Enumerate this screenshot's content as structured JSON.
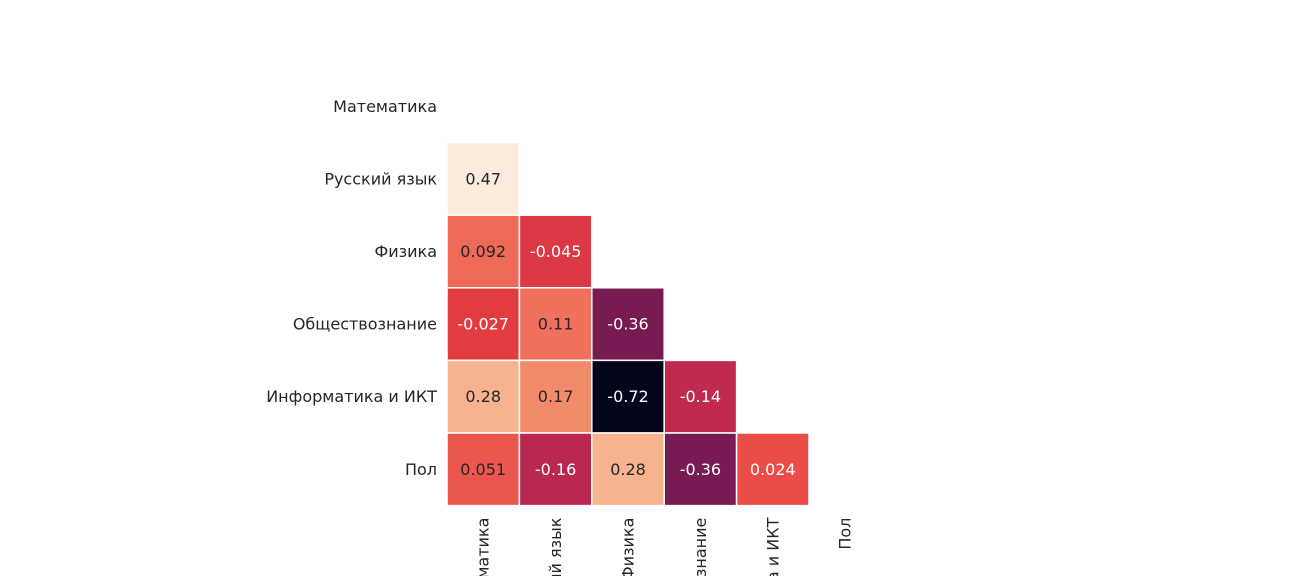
{
  "chart_data": {
    "type": "heatmap",
    "variant": "lower-triangle correlation matrix",
    "title": "",
    "row_labels": [
      "Математика",
      "Русский язык",
      "Физика",
      "Обществознание",
      "Информатика и ИКТ",
      "Пол"
    ],
    "col_labels": [
      "Математика",
      "Русский язык",
      "Физика",
      "Обществознание",
      "Информатика и ИКТ",
      "Пол"
    ],
    "col_labels_visible": [
      "матика",
      "ий язык",
      "Физика",
      "знание",
      "а и ИКТ",
      "Пол"
    ],
    "cells": [
      {
        "row": 1,
        "col": 0,
        "value": 0.47,
        "label": "0.47"
      },
      {
        "row": 2,
        "col": 0,
        "value": 0.092,
        "label": "0.092"
      },
      {
        "row": 2,
        "col": 1,
        "value": -0.045,
        "label": "-0.045"
      },
      {
        "row": 3,
        "col": 0,
        "value": -0.027,
        "label": "-0.027"
      },
      {
        "row": 3,
        "col": 1,
        "value": 0.11,
        "label": "0.11"
      },
      {
        "row": 3,
        "col": 2,
        "value": -0.36,
        "label": "-0.36"
      },
      {
        "row": 4,
        "col": 0,
        "value": 0.28,
        "label": "0.28"
      },
      {
        "row": 4,
        "col": 1,
        "value": 0.17,
        "label": "0.17"
      },
      {
        "row": 4,
        "col": 2,
        "value": -0.72,
        "label": "-0.72"
      },
      {
        "row": 4,
        "col": 3,
        "value": -0.14,
        "label": "-0.14"
      },
      {
        "row": 5,
        "col": 0,
        "value": 0.051,
        "label": "0.051"
      },
      {
        "row": 5,
        "col": 1,
        "value": -0.16,
        "label": "-0.16"
      },
      {
        "row": 5,
        "col": 2,
        "value": 0.28,
        "label": "0.28"
      },
      {
        "row": 5,
        "col": 3,
        "value": -0.36,
        "label": "-0.36"
      },
      {
        "row": 5,
        "col": 4,
        "value": 0.024,
        "label": "0.024"
      }
    ],
    "value_range": [
      -0.72,
      0.47
    ],
    "colormap": "rocket",
    "colormap_stops": [
      "#03051a",
      "#4c1d4b",
      "#a11a5b",
      "#e83f3f",
      "#f6a47c",
      "#faebdd"
    ],
    "light_text_color": "#ffffff",
    "dark_text_color": "#262626",
    "colorbar": false,
    "grid_line_color": "#ffffff"
  }
}
